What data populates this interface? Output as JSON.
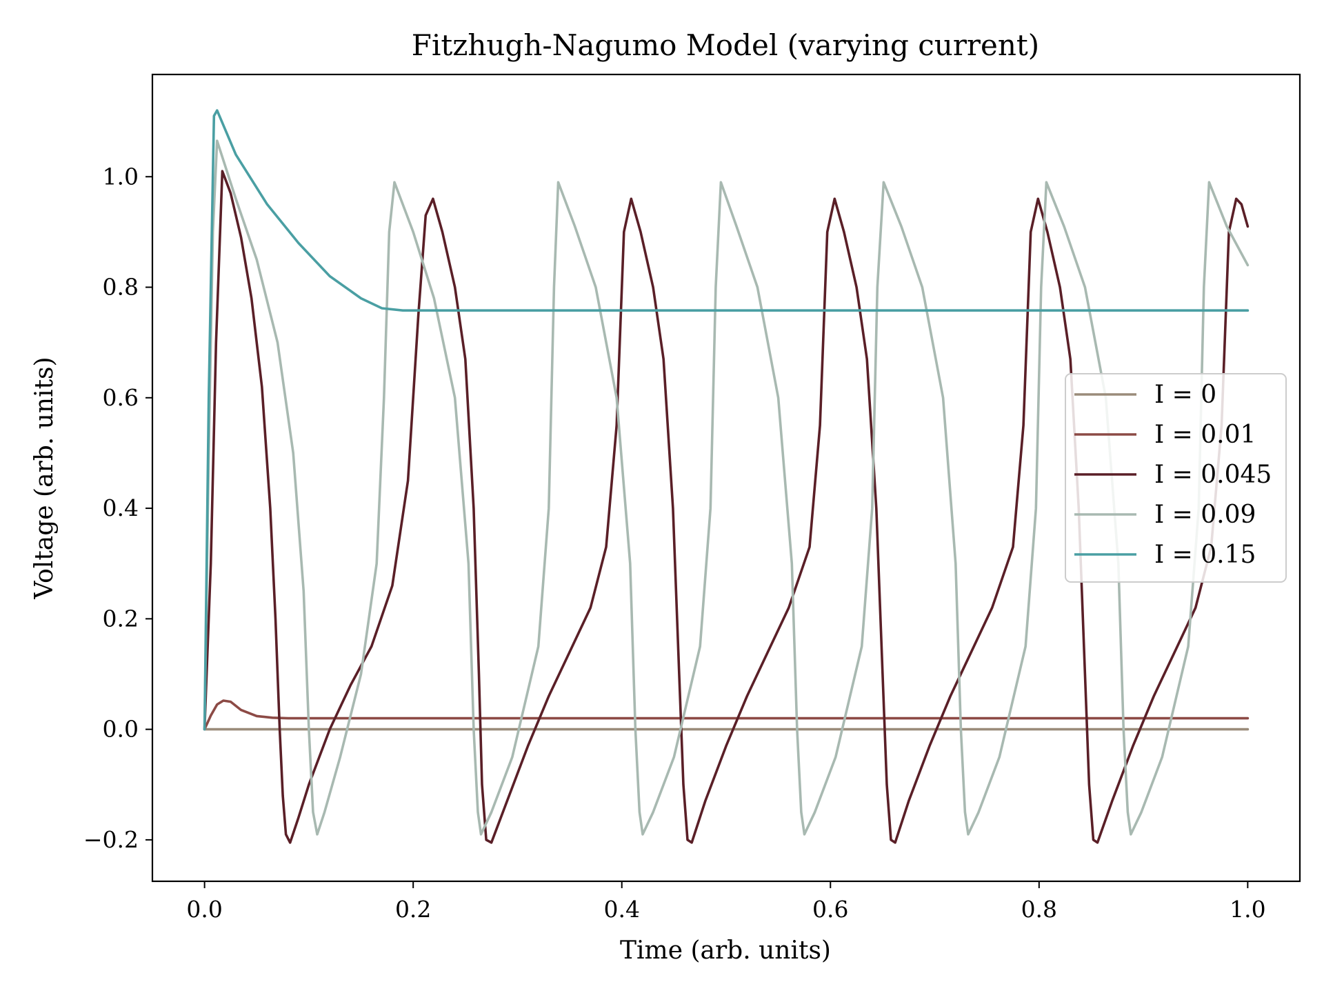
{
  "chart_data": {
    "type": "line",
    "title": "Fitzhugh-Nagumo Model (varying current)",
    "xlabel": "Time (arb. units)",
    "ylabel": "Voltage (arb. units)",
    "xlim": [
      -0.05,
      1.05
    ],
    "ylim": [
      -0.275,
      1.185
    ],
    "xticks": [
      0.0,
      0.2,
      0.4,
      0.6,
      0.8,
      1.0
    ],
    "xtick_labels": [
      "0.0",
      "0.2",
      "0.4",
      "0.6",
      "0.8",
      "1.0"
    ],
    "yticks": [
      -0.2,
      0.0,
      0.2,
      0.4,
      0.6,
      0.8,
      1.0
    ],
    "ytick_labels": [
      "−0.2",
      "0.0",
      "0.2",
      "0.4",
      "0.6",
      "0.8",
      "1.0"
    ],
    "grid": false,
    "legend_position": "center-right",
    "series": [
      {
        "name": "I = 0",
        "color": "#9a8b7a",
        "x": [
          0.0,
          0.01,
          1.0
        ],
        "y": [
          0.0,
          0.0,
          0.0
        ]
      },
      {
        "name": "I = 0.01",
        "color": "#8c4a45",
        "x": [
          0.0,
          0.006,
          0.012,
          0.018,
          0.025,
          0.035,
          0.05,
          0.065,
          0.08,
          1.0
        ],
        "y": [
          0.0,
          0.025,
          0.045,
          0.052,
          0.05,
          0.035,
          0.024,
          0.021,
          0.02,
          0.02
        ]
      },
      {
        "name": "I = 0.045",
        "color": "#5a1f27",
        "x": [
          0.0,
          0.006,
          0.011,
          0.017,
          0.025,
          0.035,
          0.045,
          0.055,
          0.063,
          0.068,
          0.072,
          0.075,
          0.078,
          0.082,
          0.09,
          0.1,
          0.12,
          0.14,
          0.16,
          0.18,
          0.195,
          0.205,
          0.212,
          0.219,
          0.228,
          0.24,
          0.25,
          0.258,
          0.263,
          0.266,
          0.27,
          0.275,
          0.29,
          0.31,
          0.33,
          0.35,
          0.37,
          0.385,
          0.395,
          0.402,
          0.409,
          0.418,
          0.43,
          0.44,
          0.449,
          0.455,
          0.459,
          0.463,
          0.467,
          0.48,
          0.5,
          0.52,
          0.54,
          0.56,
          0.58,
          0.59,
          0.597,
          0.604,
          0.613,
          0.625,
          0.635,
          0.644,
          0.65,
          0.654,
          0.658,
          0.662,
          0.675,
          0.695,
          0.715,
          0.735,
          0.755,
          0.775,
          0.785,
          0.792,
          0.799,
          0.808,
          0.82,
          0.83,
          0.838,
          0.844,
          0.848,
          0.852,
          0.856,
          0.87,
          0.89,
          0.91,
          0.93,
          0.95,
          0.965,
          0.975,
          0.982,
          0.989,
          0.994,
          1.0
        ],
        "y": [
          0.0,
          0.3,
          0.7,
          1.01,
          0.97,
          0.89,
          0.78,
          0.62,
          0.4,
          0.2,
          0.0,
          -0.12,
          -0.19,
          -0.205,
          -0.16,
          -0.1,
          0.0,
          0.08,
          0.15,
          0.26,
          0.45,
          0.75,
          0.93,
          0.96,
          0.9,
          0.8,
          0.67,
          0.4,
          0.1,
          -0.1,
          -0.2,
          -0.205,
          -0.13,
          -0.03,
          0.06,
          0.14,
          0.22,
          0.33,
          0.55,
          0.9,
          0.96,
          0.9,
          0.8,
          0.67,
          0.4,
          0.1,
          -0.1,
          -0.2,
          -0.205,
          -0.13,
          -0.03,
          0.06,
          0.14,
          0.22,
          0.33,
          0.55,
          0.9,
          0.96,
          0.9,
          0.8,
          0.67,
          0.4,
          0.1,
          -0.1,
          -0.2,
          -0.205,
          -0.13,
          -0.03,
          0.06,
          0.14,
          0.22,
          0.33,
          0.55,
          0.9,
          0.96,
          0.9,
          0.8,
          0.67,
          0.4,
          0.1,
          -0.1,
          -0.2,
          -0.205,
          -0.13,
          -0.03,
          0.06,
          0.14,
          0.22,
          0.33,
          0.55,
          0.9,
          0.96,
          0.95,
          0.91
        ]
      },
      {
        "name": "I = 0.09",
        "color": "#a8b9b1",
        "x": [
          0.0,
          0.004,
          0.008,
          0.012,
          0.03,
          0.05,
          0.07,
          0.085,
          0.095,
          0.1,
          0.104,
          0.108,
          0.115,
          0.13,
          0.15,
          0.165,
          0.172,
          0.177,
          0.182,
          0.2,
          0.22,
          0.24,
          0.253,
          0.258,
          0.262,
          0.265,
          0.275,
          0.295,
          0.32,
          0.33,
          0.335,
          0.339,
          0.355,
          0.375,
          0.395,
          0.408,
          0.413,
          0.417,
          0.42,
          0.43,
          0.45,
          0.475,
          0.485,
          0.49,
          0.495,
          0.51,
          0.53,
          0.55,
          0.563,
          0.568,
          0.572,
          0.575,
          0.585,
          0.605,
          0.63,
          0.64,
          0.645,
          0.651,
          0.668,
          0.688,
          0.708,
          0.72,
          0.725,
          0.729,
          0.732,
          0.742,
          0.762,
          0.787,
          0.797,
          0.802,
          0.807,
          0.824,
          0.844,
          0.864,
          0.876,
          0.881,
          0.885,
          0.888,
          0.898,
          0.918,
          0.943,
          0.953,
          0.958,
          0.963,
          0.98,
          1.0
        ],
        "y": [
          0.0,
          0.5,
          0.9,
          1.065,
          0.96,
          0.85,
          0.7,
          0.5,
          0.25,
          0.0,
          -0.15,
          -0.19,
          -0.15,
          -0.05,
          0.1,
          0.3,
          0.6,
          0.9,
          0.99,
          0.9,
          0.78,
          0.6,
          0.3,
          0.0,
          -0.15,
          -0.19,
          -0.15,
          -0.05,
          0.15,
          0.4,
          0.8,
          0.99,
          0.91,
          0.8,
          0.6,
          0.3,
          0.0,
          -0.15,
          -0.19,
          -0.15,
          -0.05,
          0.15,
          0.4,
          0.8,
          0.99,
          0.91,
          0.8,
          0.6,
          0.3,
          0.0,
          -0.15,
          -0.19,
          -0.15,
          -0.05,
          0.15,
          0.4,
          0.8,
          0.99,
          0.91,
          0.8,
          0.6,
          0.3,
          0.0,
          -0.15,
          -0.19,
          -0.15,
          -0.05,
          0.15,
          0.4,
          0.8,
          0.99,
          0.91,
          0.8,
          0.6,
          0.3,
          0.0,
          -0.15,
          -0.19,
          -0.15,
          -0.05,
          0.15,
          0.4,
          0.8,
          0.99,
          0.91,
          0.84
        ]
      },
      {
        "name": "I = 0.15",
        "color": "#4a9fa3",
        "x": [
          0.0,
          0.004,
          0.009,
          0.012,
          0.03,
          0.06,
          0.09,
          0.12,
          0.15,
          0.17,
          0.19,
          0.2,
          1.0
        ],
        "y": [
          0.0,
          0.6,
          1.11,
          1.12,
          1.04,
          0.95,
          0.88,
          0.82,
          0.78,
          0.762,
          0.758,
          0.758,
          0.758
        ]
      }
    ]
  }
}
